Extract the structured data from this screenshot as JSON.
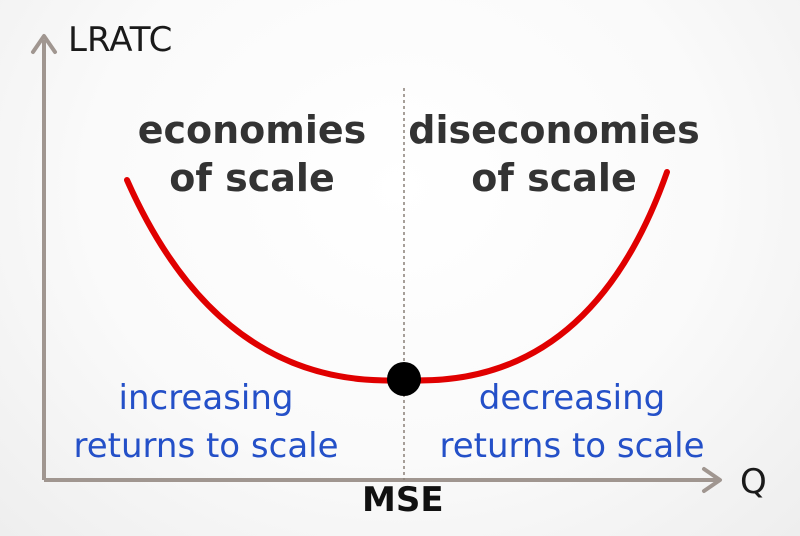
{
  "axes": {
    "y_label": "LRATC",
    "x_label": "Q",
    "x_marker_label": "MSE",
    "axis_color": "#a09690"
  },
  "regions": {
    "left": {
      "title_line1": "economies",
      "title_line2": "of scale",
      "note_line1": "increasing",
      "note_line2": "returns to scale"
    },
    "right": {
      "title_line1": "diseconomies",
      "title_line2": "of scale",
      "note_line1": "decreasing",
      "note_line2": "returns to scale"
    }
  },
  "curve": {
    "name": "LRATC",
    "color": "#e00000",
    "minimum_point_color": "#000000"
  },
  "colors": {
    "title_text": "#333333",
    "note_text": "#2450c8"
  }
}
